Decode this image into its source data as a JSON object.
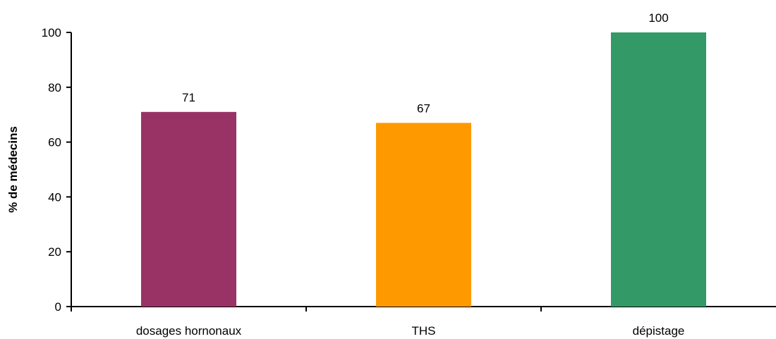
{
  "chart_data": {
    "type": "bar",
    "title": "",
    "xlabel": "",
    "ylabel": "% de médecins",
    "categories": [
      "dosages hornonaux",
      "THS",
      "dépistage"
    ],
    "values": [
      71,
      67,
      100
    ],
    "data_labels": [
      "71",
      "67",
      "100"
    ],
    "colors": [
      "#993366",
      "#ff9900",
      "#339966"
    ],
    "ylim": [
      0,
      100
    ],
    "yticks": [
      0,
      20,
      40,
      60,
      80,
      100
    ],
    "ytick_labels": [
      "0",
      "20",
      "40",
      "60",
      "80",
      "100"
    ],
    "grid": false,
    "legend": "none"
  }
}
